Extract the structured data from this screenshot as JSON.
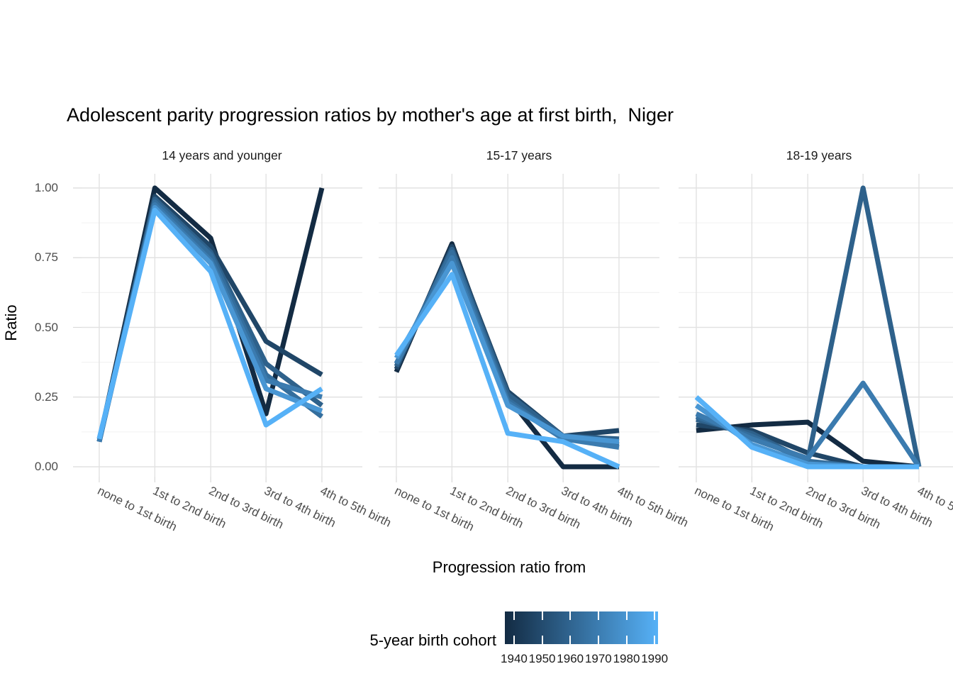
{
  "title": "Adolescent parity progression ratios by mother's age at first birth,  Niger",
  "y_axis": {
    "title": "Ratio",
    "tick_labels": [
      "0.00",
      "0.25",
      "0.50",
      "0.75",
      "1.00"
    ]
  },
  "x_axis": {
    "title": "Progression ratio from",
    "categories": [
      "none to 1st birth",
      "1st to 2nd birth",
      "2nd to 3rd birth",
      "3rd to 4th birth",
      "4th to 5th birth"
    ]
  },
  "legend": {
    "title": "5-year birth cohort",
    "tick_labels": [
      "1940",
      "1950",
      "1960",
      "1970",
      "1980",
      "1990"
    ],
    "gradient_low": "#132B43",
    "gradient_high": "#56B1F7"
  },
  "chart_data": {
    "type": "line",
    "title": "Adolescent parity progression ratios by mother's age at first birth,  Niger",
    "xlabel": "Progression ratio from",
    "ylabel": "Ratio",
    "ylim": [
      0,
      1
    ],
    "y_major_ticks": [
      0,
      0.25,
      0.5,
      0.75,
      1.0
    ],
    "y_minor_ticks": [
      0.125,
      0.375,
      0.625,
      0.875
    ],
    "grid": true,
    "legend_position": "bottom",
    "legend_title": "5-year birth cohort",
    "colorbar_range": [
      1940,
      1990
    ],
    "categories": [
      "none to 1st birth",
      "1st to 2nd birth",
      "2nd to 3rd birth",
      "3rd to 4th birth",
      "4th to 5th birth"
    ],
    "facets": [
      {
        "label": "14 years and younger",
        "series": [
          {
            "name": "1940",
            "color": "#132B43",
            "values": [
              0.09,
              1.0,
              0.82,
              0.19,
              1.0
            ]
          },
          {
            "name": "1950",
            "color": "#204667",
            "values": [
              0.09,
              0.97,
              0.79,
              0.45,
              0.33
            ]
          },
          {
            "name": "1960",
            "color": "#2E618B",
            "values": [
              0.09,
              0.96,
              0.77,
              0.37,
              0.22
            ]
          },
          {
            "name": "1965",
            "color": "#346E9D",
            "values": [
              0.09,
              0.95,
              0.76,
              0.33,
              0.18
            ]
          },
          {
            "name": "1970",
            "color": "#3B7BAF",
            "values": [
              0.09,
              0.94,
              0.74,
              0.31,
              0.25
            ]
          },
          {
            "name": "1980",
            "color": "#4996D3",
            "values": [
              0.1,
              0.93,
              0.73,
              0.28,
              0.2
            ]
          },
          {
            "name": "1990",
            "color": "#56B1F7",
            "values": [
              0.1,
              0.92,
              0.7,
              0.15,
              0.28
            ]
          }
        ]
      },
      {
        "label": "15-17 years",
        "series": [
          {
            "name": "1940",
            "color": "#132B43",
            "values": [
              0.34,
              0.8,
              0.25,
              0.0,
              0.0
            ]
          },
          {
            "name": "1950",
            "color": "#204667",
            "values": [
              0.35,
              0.79,
              0.27,
              0.11,
              0.13
            ]
          },
          {
            "name": "1960",
            "color": "#2E618B",
            "values": [
              0.36,
              0.78,
              0.26,
              0.11,
              0.1
            ]
          },
          {
            "name": "1965",
            "color": "#346E9D",
            "values": [
              0.37,
              0.77,
              0.24,
              0.1,
              0.08
            ]
          },
          {
            "name": "1970",
            "color": "#3B7BAF",
            "values": [
              0.37,
              0.75,
              0.23,
              0.1,
              0.07
            ]
          },
          {
            "name": "1980",
            "color": "#4996D3",
            "values": [
              0.39,
              0.73,
              0.22,
              0.11,
              0.09
            ]
          },
          {
            "name": "1990",
            "color": "#56B1F7",
            "values": [
              0.4,
              0.69,
              0.12,
              0.09,
              0.0
            ]
          }
        ]
      },
      {
        "label": "18-19 years",
        "series": [
          {
            "name": "1940",
            "color": "#132B43",
            "values": [
              0.13,
              0.15,
              0.16,
              0.02,
              0.0
            ]
          },
          {
            "name": "1950",
            "color": "#204667",
            "values": [
              0.15,
              0.13,
              0.05,
              0.0,
              0.0
            ]
          },
          {
            "name": "1960",
            "color": "#2E618B",
            "values": [
              0.17,
              0.12,
              0.02,
              1.0,
              0.0
            ]
          },
          {
            "name": "1965",
            "color": "#346E9D",
            "values": [
              0.18,
              0.11,
              0.02,
              0.0,
              0.0
            ]
          },
          {
            "name": "1970",
            "color": "#3B7BAF",
            "values": [
              0.19,
              0.1,
              0.03,
              0.3,
              0.0
            ]
          },
          {
            "name": "1980",
            "color": "#4996D3",
            "values": [
              0.22,
              0.08,
              0.01,
              0.0,
              0.0
            ]
          },
          {
            "name": "1990",
            "color": "#56B1F7",
            "values": [
              0.25,
              0.07,
              0.0,
              0.0,
              0.0
            ]
          }
        ]
      }
    ]
  }
}
